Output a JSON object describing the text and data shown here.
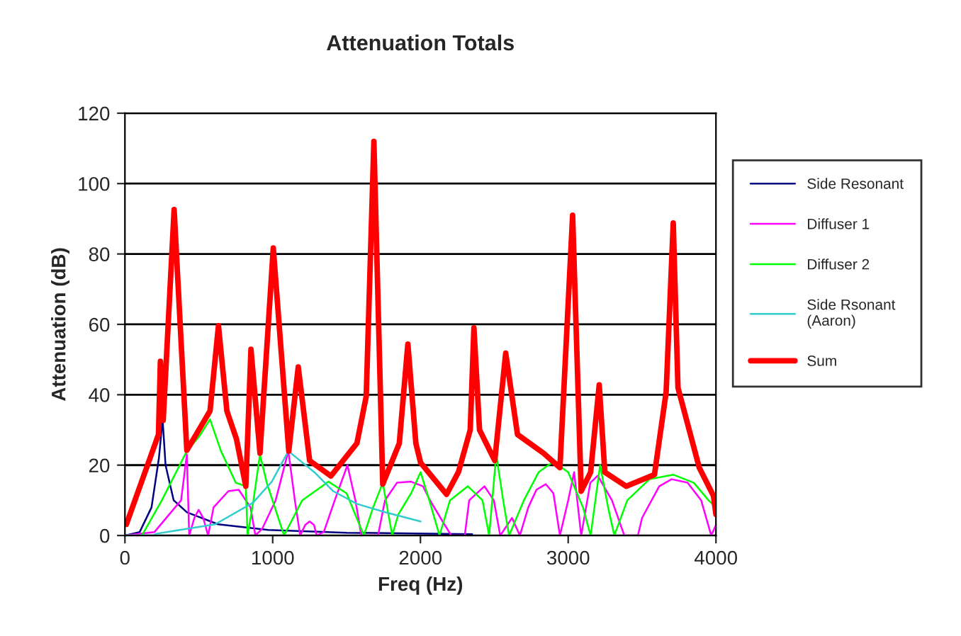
{
  "chart_data": {
    "type": "line",
    "title": "Attenuation Totals",
    "xlabel": "Freq (Hz)",
    "ylabel": "Attenuation (dB)",
    "xlim": [
      0,
      4000
    ],
    "xticks": [
      0,
      1000,
      2000,
      3000,
      4000
    ],
    "ylim": [
      0,
      120
    ],
    "yticks": [
      0,
      20,
      40,
      60,
      80,
      100,
      120
    ],
    "grid": "y",
    "legend": "right",
    "marker": "none",
    "line_style": "solid",
    "series": [
      {
        "name": "Side Resonant",
        "color": "#000080",
        "x": [
          0,
          100,
          180,
          230,
          255,
          275,
          330,
          420,
          630,
          970,
          1500,
          2350
        ],
        "values": [
          0,
          1,
          8,
          22,
          33,
          20,
          10,
          6.6,
          3.2,
          1.6,
          0.8,
          0.4
        ]
      },
      {
        "name": "Diffuser 1",
        "color": "#ff00ff",
        "x": [
          0,
          200,
          380,
          419,
          435,
          470,
          499,
          530,
          563,
          600,
          700,
          770,
          850,
          883,
          930,
          1020,
          1106,
          1150,
          1186,
          1220,
          1250,
          1280,
          1298,
          1346,
          1420,
          1506,
          1560,
          1600,
          1713,
          1760,
          1841,
          1937,
          2017,
          2065,
          2150,
          2209,
          2300,
          2330,
          2433,
          2497,
          2540,
          2620,
          2673,
          2730,
          2785,
          2848,
          2900,
          2944,
          3000,
          3040,
          3088,
          3150,
          3200,
          3296,
          3380,
          3472,
          3500,
          3616,
          3700,
          3808,
          3900,
          3968,
          4000
        ],
        "values": [
          0,
          1,
          10,
          23,
          0,
          5,
          7.3,
          5,
          0,
          8,
          12.6,
          13,
          8,
          0,
          2,
          10,
          24,
          10,
          0,
          3,
          4,
          3,
          0,
          1,
          10,
          20,
          10,
          0,
          0,
          10,
          15,
          15.3,
          14,
          10,
          4,
          0,
          0,
          10,
          14,
          10,
          0,
          5,
          0,
          8,
          13,
          14.6,
          12,
          0,
          10,
          18,
          0,
          15,
          17,
          10,
          0,
          0,
          5,
          14,
          16,
          15,
          10,
          0,
          3
        ]
      },
      {
        "name": "Diffuser 2",
        "color": "#00ff00",
        "x": [
          0,
          115,
          250,
          419,
          500,
          576,
          650,
          750,
          818,
          830,
          870,
          914,
          960,
          1077,
          1200,
          1378,
          1500,
          1617,
          1680,
          1745,
          1809,
          1850,
          1937,
          2001,
          2060,
          2129,
          2200,
          2321,
          2420,
          2465,
          2513,
          2560,
          2600,
          2700,
          2800,
          2900,
          3000,
          3100,
          3152,
          3216,
          3270,
          3312,
          3400,
          3550,
          3711,
          3850,
          3950,
          4000
        ],
        "values": [
          0,
          0,
          10,
          24,
          28,
          33,
          24,
          15,
          14,
          0,
          10,
          23,
          15,
          0,
          10,
          15.3,
          12,
          0,
          8,
          15,
          0,
          6,
          12,
          18,
          10,
          0,
          10,
          14,
          10,
          0,
          23,
          10,
          0,
          10,
          18,
          21,
          18,
          8,
          0,
          20,
          8,
          0,
          10,
          16,
          17.3,
          15,
          10,
          8
        ]
      },
      {
        "name": "Side Rsonant\n(Aaron)",
        "color": "#33cccc",
        "x": [
          0,
          190,
          211,
          611,
          866,
          994,
          1106,
          1282,
          1410,
          1570,
          1762,
          2001
        ],
        "values": [
          0,
          0,
          0.5,
          3.2,
          9.3,
          15.3,
          24,
          18,
          12.6,
          9,
          6.6,
          4
        ]
      },
      {
        "name": "Sum",
        "color": "#ff0000",
        "x": [
          10,
          227,
          240,
          259,
          333,
          419,
          576,
          633,
          690,
          755,
          818,
          853,
          914,
          1004,
          1109,
          1173,
          1250,
          1394,
          1570,
          1633,
          1685,
          1745,
          1857,
          1915,
          1969,
          2001,
          2177,
          2257,
          2337,
          2362,
          2400,
          2503,
          2577,
          2657,
          2833,
          2944,
          3030,
          3088,
          3152,
          3210,
          3248,
          3392,
          3584,
          3663,
          3711,
          3743,
          3887,
          3983,
          4000
        ],
        "values": [
          3.2,
          28.7,
          49.5,
          32.7,
          92.6,
          24.2,
          35.4,
          59.6,
          35.4,
          27.4,
          14,
          52.9,
          23.4,
          81.7,
          24,
          47.9,
          21.3,
          16.9,
          26.2,
          39.5,
          112,
          14.6,
          26.2,
          54.4,
          26.2,
          20.7,
          11.7,
          18,
          30,
          59,
          30,
          21.3,
          51.8,
          28.7,
          23.4,
          19.3,
          91,
          12.6,
          18,
          42.8,
          18,
          14,
          17.3,
          40.8,
          88.8,
          42,
          19.3,
          11.3,
          6
        ]
      }
    ]
  }
}
